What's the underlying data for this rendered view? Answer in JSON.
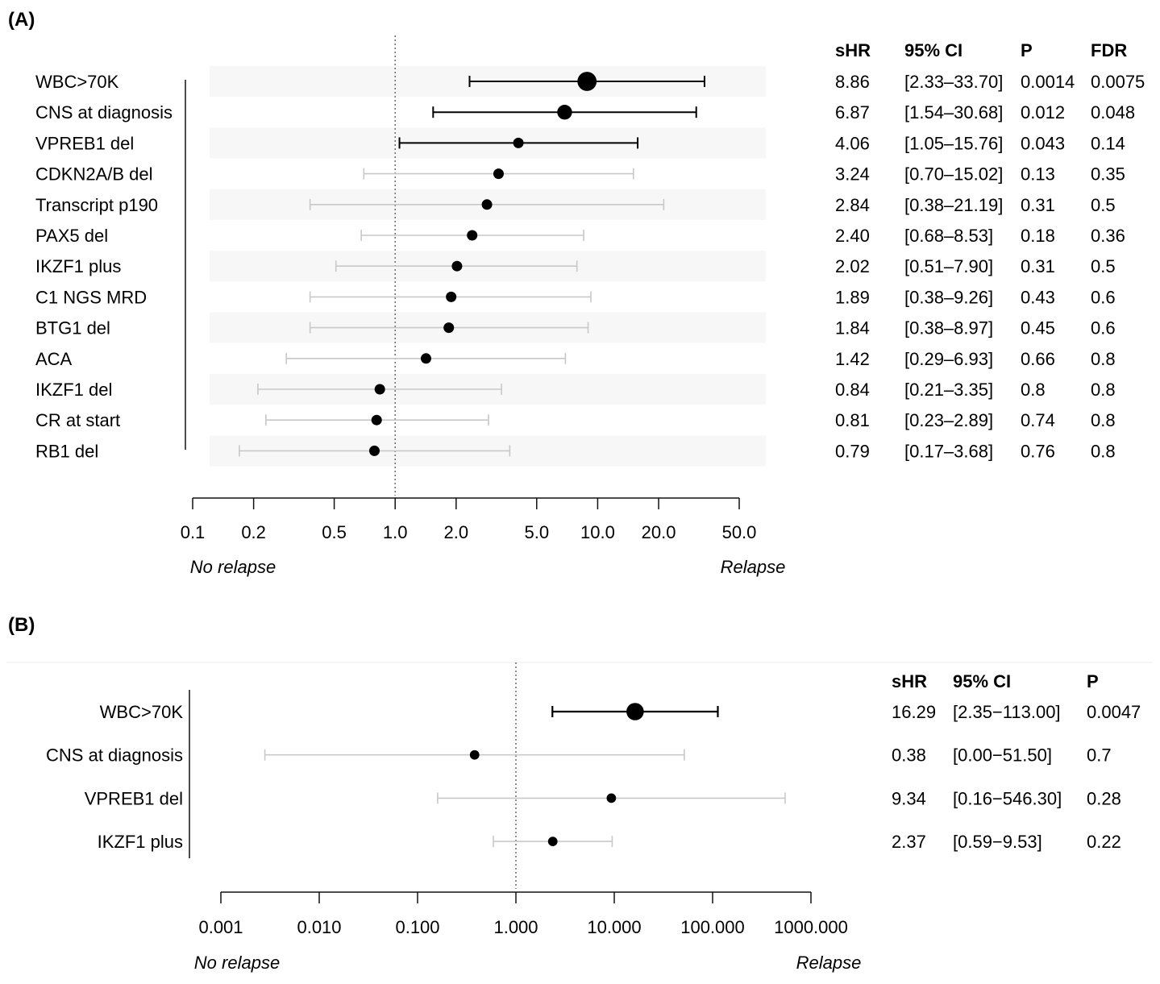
{
  "colors": {
    "significant": "#000000",
    "nonsignificant": "#c8c8c8",
    "ink": "#111111",
    "band": "#f7f7f7"
  },
  "chart_data": [
    {
      "type": "forest",
      "panel": "(A)",
      "xscale": "log",
      "xlim": [
        0.1,
        50
      ],
      "ticks": [
        0.1,
        0.2,
        0.5,
        1,
        2,
        5,
        10,
        20,
        50
      ],
      "tick_labels": [
        "0.1",
        "0.2",
        "0.5",
        "1.0",
        "2.0",
        "5.0",
        "10.0",
        "20.0",
        "50.0"
      ],
      "reference_line": 1,
      "left_direction": "No relapse",
      "right_direction": "Relapse",
      "columns": [
        "sHR",
        "95% CI",
        "P",
        "FDR"
      ],
      "rows": [
        {
          "label": "WBC>70K",
          "hr": 8.86,
          "lo": 2.33,
          "hi": 33.7,
          "sHR": "8.86",
          "ci": "[2.33–33.70]",
          "p": "0.0014",
          "fdr": "0.0075",
          "significant": true,
          "weight": 3
        },
        {
          "label": "CNS at diagnosis",
          "hr": 6.87,
          "lo": 1.54,
          "hi": 30.68,
          "sHR": "6.87",
          "ci": "[1.54–30.68]",
          "p": "0.012",
          "fdr": "0.048",
          "significant": true,
          "weight": 2
        },
        {
          "label": "VPREB1 del",
          "hr": 4.06,
          "lo": 1.05,
          "hi": 15.76,
          "sHR": "4.06",
          "ci": "[1.05–15.76]",
          "p": "0.043",
          "fdr": "0.14",
          "significant": true,
          "weight": 1
        },
        {
          "label": "CDKN2A/B del",
          "hr": 3.24,
          "lo": 0.7,
          "hi": 15.02,
          "sHR": "3.24",
          "ci": "[0.70–15.02]",
          "p": "0.13",
          "fdr": "0.35",
          "significant": false,
          "weight": 1
        },
        {
          "label": "Transcript p190",
          "hr": 2.84,
          "lo": 0.38,
          "hi": 21.19,
          "sHR": "2.84",
          "ci": "[0.38–21.19]",
          "p": "0.31",
          "fdr": "0.5",
          "significant": false,
          "weight": 1
        },
        {
          "label": "PAX5 del",
          "hr": 2.4,
          "lo": 0.68,
          "hi": 8.53,
          "sHR": "2.40",
          "ci": "[0.68–8.53]",
          "p": "0.18",
          "fdr": "0.36",
          "significant": false,
          "weight": 1
        },
        {
          "label": "IKZF1 plus",
          "hr": 2.02,
          "lo": 0.51,
          "hi": 7.9,
          "sHR": "2.02",
          "ci": "[0.51–7.90]",
          "p": "0.31",
          "fdr": "0.5",
          "significant": false,
          "weight": 1
        },
        {
          "label": "C1 NGS MRD",
          "hr": 1.89,
          "lo": 0.38,
          "hi": 9.26,
          "sHR": "1.89",
          "ci": "[0.38–9.26]",
          "p": "0.43",
          "fdr": "0.6",
          "significant": false,
          "weight": 1
        },
        {
          "label": "BTG1 del",
          "hr": 1.84,
          "lo": 0.38,
          "hi": 8.97,
          "sHR": "1.84",
          "ci": "[0.38–8.97]",
          "p": "0.45",
          "fdr": "0.6",
          "significant": false,
          "weight": 1
        },
        {
          "label": "ACA",
          "hr": 1.42,
          "lo": 0.29,
          "hi": 6.93,
          "sHR": "1.42",
          "ci": "[0.29–6.93]",
          "p": "0.66",
          "fdr": "0.8",
          "significant": false,
          "weight": 1
        },
        {
          "label": "IKZF1 del",
          "hr": 0.84,
          "lo": 0.21,
          "hi": 3.35,
          "sHR": "0.84",
          "ci": "[0.21–3.35]",
          "p": "0.8",
          "fdr": "0.8",
          "significant": false,
          "weight": 1
        },
        {
          "label": "CR at start",
          "hr": 0.81,
          "lo": 0.23,
          "hi": 2.89,
          "sHR": "0.81",
          "ci": "[0.23–2.89]",
          "p": "0.74",
          "fdr": "0.8",
          "significant": false,
          "weight": 1
        },
        {
          "label": "RB1 del",
          "hr": 0.79,
          "lo": 0.17,
          "hi": 3.68,
          "sHR": "0.79",
          "ci": "[0.17–3.68]",
          "p": "0.76",
          "fdr": "0.8",
          "significant": false,
          "weight": 1
        }
      ]
    },
    {
      "type": "forest",
      "panel": "(B)",
      "xscale": "log",
      "xlim": [
        0.001,
        1000
      ],
      "ticks": [
        0.001,
        0.01,
        0.1,
        1,
        10,
        100,
        1000
      ],
      "tick_labels": [
        "0.001",
        "0.010",
        "0.100",
        "1.000",
        "10.000",
        "100.000",
        "1000.000"
      ],
      "reference_line": 1,
      "left_direction": "No relapse",
      "right_direction": "Relapse",
      "columns": [
        "sHR",
        "95% CI",
        "P"
      ],
      "rows": [
        {
          "label": "WBC>70K",
          "hr": 16.29,
          "lo": 2.35,
          "hi": 113.0,
          "sHR": "16.29",
          "ci": "[2.35−113.00]",
          "p": "0.0047",
          "significant": true,
          "weight": 3
        },
        {
          "label": "CNS at diagnosis",
          "hr": 0.38,
          "lo": 0.0028,
          "hi": 51.5,
          "sHR": "0.38",
          "ci": "[0.00−51.50]",
          "p": "0.7",
          "significant": false,
          "weight": 1.3
        },
        {
          "label": "VPREB1 del",
          "hr": 9.34,
          "lo": 0.16,
          "hi": 546.3,
          "sHR": "9.34",
          "ci": "[0.16−546.30]",
          "p": "0.28",
          "significant": false,
          "weight": 1.3
        },
        {
          "label": "IKZF1 plus",
          "hr": 2.37,
          "lo": 0.59,
          "hi": 9.53,
          "sHR": "2.37",
          "ci": "[0.59−9.53]",
          "p": "0.22",
          "significant": false,
          "weight": 1.3
        }
      ]
    }
  ]
}
